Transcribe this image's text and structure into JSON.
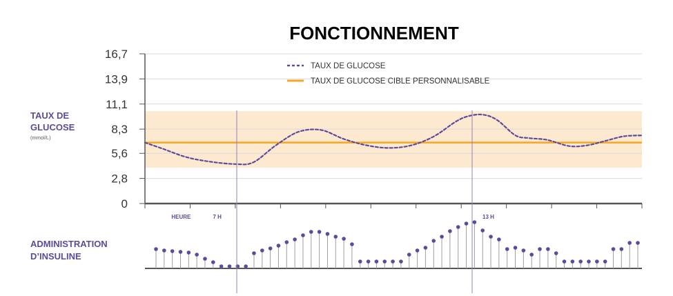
{
  "colors": {
    "text": "#333333",
    "purple": "#5c4a9a",
    "orange": "#f5a623",
    "band": "#fde9cf",
    "axis": "#555555",
    "stem": "#9e9e9e"
  },
  "chart_data": [
    {
      "type": "line",
      "title": "FONCTIONNEMENT",
      "ylabel": "TAUX DE GLUCOSE",
      "ylabel_unit": "(mmol/L)",
      "yticks": [
        "0",
        "2,8",
        "5,6",
        "8,3",
        "11,1",
        "13,9",
        "16,7"
      ],
      "ytick_values": [
        0,
        2.8,
        5.6,
        8.3,
        11.1,
        13.9,
        16.7
      ],
      "ylim": [
        0,
        16.7
      ],
      "xticks": [
        {
          "label": "HEURE",
          "x": 0.2
        },
        {
          "label": "7 H",
          "x": 1
        },
        {
          "label": "13 H",
          "x": 7
        }
      ],
      "xlim": [
        -0.6,
        10.4
      ],
      "target_band": [
        4.0,
        10.3
      ],
      "target_value": 6.8,
      "legend": [
        {
          "label": "TAUX DE GLUCOSE",
          "style": "dotted",
          "color": "#5c4a9a"
        },
        {
          "label": "TAUX DE GLUCOSE CIBLE PERSONNALISABLE",
          "style": "solid",
          "color": "#f5a623"
        }
      ],
      "series": [
        {
          "name": "TAUX DE GLUCOSE",
          "x": [
            -0.6,
            -0.2,
            0.3,
            0.8,
            1.4,
            1.8,
            2.3,
            2.8,
            3.3,
            3.8,
            4.3,
            4.8,
            5.3,
            5.8,
            6.3,
            6.6,
            6.9,
            7.2,
            7.6,
            7.9,
            8.3,
            8.8,
            9.2,
            9.6,
            10.0,
            10.4
          ],
          "y": [
            6.8,
            6.1,
            5.2,
            4.7,
            4.4,
            4.6,
            6.5,
            8.0,
            8.2,
            7.2,
            6.5,
            6.2,
            6.5,
            7.5,
            9.2,
            9.8,
            9.9,
            9.3,
            7.6,
            7.3,
            7.1,
            6.4,
            6.5,
            7.0,
            7.5,
            7.6
          ]
        }
      ]
    },
    {
      "type": "stem",
      "label": "ADMINISTRATION D’INSULINE",
      "values": [
        28,
        26,
        25,
        24,
        23,
        20,
        14,
        9,
        3,
        3,
        3,
        3,
        22,
        26,
        29,
        33,
        38,
        42,
        48,
        53,
        53,
        50,
        46,
        43,
        35,
        10,
        10,
        10,
        10,
        10,
        10,
        20,
        26,
        30,
        40,
        46,
        54,
        60,
        65,
        67,
        55,
        46,
        42,
        28,
        30,
        26,
        20,
        28,
        28,
        22,
        10,
        10,
        10,
        10,
        10,
        10,
        28,
        28,
        37,
        37
      ]
    }
  ]
}
